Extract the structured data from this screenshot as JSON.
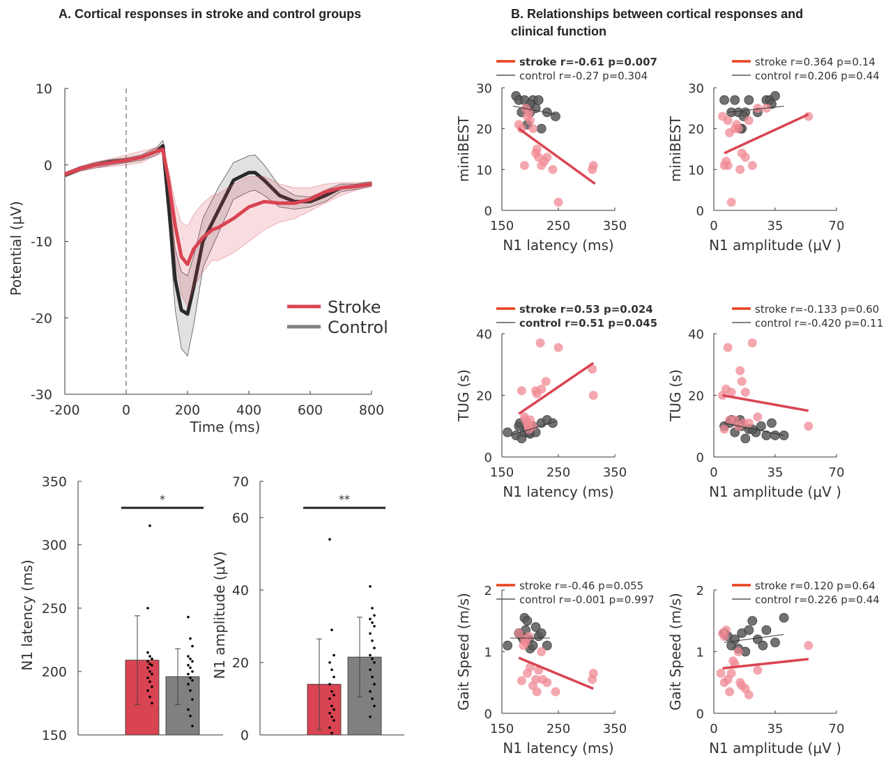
{
  "titles": {
    "panel_a": "A. Cortical responses in stroke and control groups",
    "panel_b_line1": "B. Relationships between cortical responses and",
    "panel_b_line2": "clinical function"
  },
  "colors": {
    "stroke": "#d94452",
    "control": "#808080",
    "stroke_fit": "#d94452",
    "stroke_dot": "#f08a94",
    "control_dot": "#595959"
  },
  "chart_data": [
    {
      "id": "erp",
      "type": "line",
      "xlabel": "Time (ms)",
      "ylabel": "Potential (μV)",
      "xlim": [
        -200,
        800
      ],
      "ylim": [
        -30,
        10
      ],
      "xticks": [
        -200,
        0,
        200,
        400,
        600,
        800
      ],
      "yticks": [
        10,
        0,
        -10,
        -20,
        -30
      ],
      "legend": [
        "Stroke",
        "Control"
      ],
      "series": [
        {
          "name": "Stroke",
          "x": [
            -200,
            -150,
            -100,
            -50,
            0,
            50,
            100,
            120,
            140,
            160,
            180,
            200,
            220,
            250,
            280,
            300,
            350,
            400,
            450,
            500,
            550,
            600,
            650,
            700,
            750,
            800
          ],
          "y": [
            -1.2,
            -0.5,
            0,
            0.3,
            0.6,
            1.0,
            1.8,
            2.0,
            -2.5,
            -8,
            -12,
            -13,
            -11,
            -9.5,
            -8.5,
            -8.2,
            -7,
            -5.5,
            -4.8,
            -5.0,
            -5.0,
            -4.5,
            -3.5,
            -3.0,
            -2.8,
            -2.5
          ],
          "upper": [
            -1,
            -0.2,
            0.4,
            0.8,
            1.3,
            1.8,
            2.3,
            2.3,
            -1,
            -5,
            -7.5,
            -8,
            -6.5,
            -5,
            -4,
            -3.8,
            -2.5,
            -1.5,
            -1.5,
            -2.5,
            -3,
            -3,
            -2.5,
            -2.3,
            -2.3,
            -2.2
          ],
          "lower": [
            -1.5,
            -0.8,
            -0.4,
            -0.2,
            0,
            0.3,
            1.3,
            1.5,
            -4,
            -12,
            -17,
            -18.5,
            -16,
            -14,
            -12.5,
            -12.5,
            -11.5,
            -10,
            -8.5,
            -7.5,
            -7,
            -6,
            -5,
            -4,
            -3.3,
            -2.8
          ]
        },
        {
          "name": "Control",
          "x": [
            -200,
            -150,
            -100,
            -50,
            0,
            50,
            100,
            120,
            140,
            160,
            180,
            200,
            220,
            250,
            300,
            350,
            400,
            420,
            450,
            500,
            550,
            600,
            650,
            700,
            750,
            800
          ],
          "y": [
            -1.3,
            -0.5,
            0,
            0.4,
            0.6,
            1.0,
            1.8,
            2.5,
            -6,
            -15,
            -19,
            -19.5,
            -16,
            -10,
            -6,
            -2,
            -1,
            -1,
            -2,
            -4,
            -4.8,
            -4.8,
            -4,
            -3,
            -2.8,
            -2.5
          ],
          "upper": [
            -1,
            -0.2,
            0.3,
            0.7,
            0.9,
            1.3,
            2.3,
            3.2,
            -4,
            -11,
            -14,
            -14.5,
            -12,
            -7,
            -3,
            0.3,
            1.2,
            1.3,
            0,
            -2.8,
            -4,
            -4.2,
            -3.3,
            -2.5,
            -2.5,
            -2.2
          ],
          "lower": [
            -1.6,
            -0.8,
            -0.4,
            0,
            0.3,
            0.6,
            1.3,
            2,
            -8,
            -19,
            -24,
            -25,
            -21,
            -13.5,
            -9,
            -4.5,
            -3.5,
            -3.3,
            -4,
            -5.5,
            -5.8,
            -5.5,
            -4.8,
            -3.5,
            -3.2,
            -2.8
          ]
        }
      ]
    },
    {
      "id": "latency_bar",
      "type": "bar",
      "ylabel": "N1 latency (ms)",
      "ylim": [
        150,
        350
      ],
      "yticks": [
        150,
        200,
        250,
        300,
        350
      ],
      "categories": [
        "Stroke",
        "Control"
      ],
      "values": [
        209,
        196
      ],
      "errors": [
        35,
        22
      ],
      "significance": "*",
      "points": [
        [
          215,
          212,
          210,
          208,
          206,
          205,
          203,
          200,
          198,
          195,
          192,
          188,
          185,
          180,
          175,
          250,
          315
        ],
        [
          243,
          226,
          220,
          212,
          210,
          208,
          205,
          203,
          200,
          198,
          195,
          193,
          190,
          185,
          178,
          170,
          165,
          157
        ]
      ]
    },
    {
      "id": "amplitude_bar",
      "type": "bar",
      "ylabel": "N1 amplitude (μV)",
      "ylim": [
        0,
        70
      ],
      "yticks": [
        0,
        20,
        40,
        60,
        70
      ],
      "categories": [
        "Stroke",
        "Control"
      ],
      "values": [
        14,
        21.5
      ],
      "errors": [
        12.5,
        11
      ],
      "significance": "**",
      "points": [
        [
          54,
          29,
          22,
          20,
          18,
          16,
          14,
          12,
          11,
          10,
          8,
          7,
          6,
          5,
          4,
          2,
          0.5
        ],
        [
          41,
          35,
          33,
          32,
          31,
          30,
          28,
          26,
          24,
          22,
          21,
          20,
          18,
          16,
          14,
          12,
          10,
          8,
          5
        ]
      ]
    },
    {
      "id": "s_lat_mb",
      "type": "scatter",
      "xlabel": "N1 latency (ms)",
      "ylabel": "miniBEST",
      "xlim": [
        150,
        350
      ],
      "ylim": [
        0,
        30
      ],
      "xticks": [
        150,
        250,
        350
      ],
      "yticks": [
        0,
        10,
        20,
        30
      ],
      "legend": [
        {
          "text": "stroke r=-0.61 p=0.007",
          "bold": true
        },
        {
          "text": "control r=-0.27 p=0.304",
          "bold": false
        }
      ],
      "stroke": {
        "x": [
          180,
          185,
          190,
          192,
          195,
          198,
          200,
          205,
          210,
          212,
          215,
          220,
          225,
          230,
          240,
          250,
          310,
          312
        ],
        "y": [
          21,
          20,
          11,
          25,
          23,
          24,
          22,
          20,
          14,
          15,
          13,
          11,
          12,
          13,
          10,
          2,
          10,
          11
        ]
      },
      "control": {
        "x": [
          175,
          180,
          185,
          190,
          195,
          200,
          205,
          210,
          215,
          220,
          230,
          245,
          200,
          195
        ],
        "y": [
          28,
          27,
          24,
          27,
          25,
          24,
          27,
          25,
          27,
          20,
          24,
          23,
          26,
          21
        ]
      },
      "stroke_fit": [
        [
          180,
          20
        ],
        [
          315,
          6.5
        ]
      ],
      "control_fit": [
        [
          170,
          25.5
        ],
        [
          245,
          23.5
        ]
      ]
    },
    {
      "id": "s_amp_mb",
      "type": "scatter",
      "xlabel": "N1 amplitude (μV )",
      "ylabel": "miniBEST",
      "xlim": [
        0,
        70
      ],
      "ylim": [
        0,
        30
      ],
      "xticks": [
        0,
        35,
        70
      ],
      "yticks": [
        0,
        10,
        20,
        30
      ],
      "legend": [
        {
          "text": "stroke r=0.364 p=0.14",
          "bold": false
        },
        {
          "text": "control r=0.206 p=0.44",
          "bold": false
        }
      ],
      "stroke": {
        "x": [
          5,
          6,
          7,
          8,
          9,
          10,
          12,
          13,
          15,
          16,
          18,
          20,
          22,
          25,
          30,
          54,
          8,
          14
        ],
        "y": [
          23,
          11,
          12,
          22,
          19,
          2,
          20,
          21,
          10,
          14,
          13,
          22,
          11,
          25,
          25,
          23,
          11,
          20
        ]
      },
      "control": {
        "x": [
          6,
          10,
          12,
          14,
          16,
          18,
          20,
          25,
          30,
          32,
          35,
          15,
          17,
          33
        ],
        "y": [
          27,
          24,
          27,
          24,
          20,
          24,
          27,
          24,
          27,
          27,
          28,
          20,
          23,
          26
        ]
      },
      "stroke_fit": [
        [
          6,
          14
        ],
        [
          54,
          23.5
        ]
      ],
      "control_fit": [
        [
          8,
          24
        ],
        [
          40,
          25.5
        ]
      ]
    },
    {
      "id": "s_lat_tug",
      "type": "scatter",
      "xlabel": "N1 latency (ms)",
      "ylabel": "TUG (s)",
      "xlim": [
        150,
        350
      ],
      "ylim": [
        0,
        40
      ],
      "xticks": [
        150,
        250,
        350
      ],
      "yticks": [
        0,
        20,
        40
      ],
      "legend": [
        {
          "text": "stroke r=0.53 p=0.024",
          "bold": true
        },
        {
          "text": "control r=0.51 p=0.045",
          "bold": true
        }
      ],
      "stroke": {
        "x": [
          185,
          190,
          192,
          195,
          198,
          200,
          205,
          210,
          212,
          218,
          220,
          228,
          250,
          310,
          312,
          196
        ],
        "y": [
          21.5,
          13,
          12,
          11,
          9,
          12,
          10,
          21.5,
          20.5,
          37,
          22,
          24.5,
          35.5,
          28.5,
          20,
          10
        ]
      },
      "control": {
        "x": [
          160,
          175,
          180,
          185,
          190,
          195,
          200,
          205,
          210,
          220,
          230,
          240,
          182,
          198
        ],
        "y": [
          8,
          7,
          10,
          6,
          8,
          9,
          7.5,
          10,
          8,
          11,
          12,
          11,
          11,
          8
        ]
      },
      "stroke_fit": [
        [
          180,
          14
        ],
        [
          312,
          30.5
        ]
      ],
      "control_fit": [
        [
          165,
          7
        ],
        [
          245,
          11.5
        ]
      ]
    },
    {
      "id": "s_amp_tug",
      "type": "scatter",
      "xlabel": "N1 amplitude (μV )",
      "ylabel": "TUG (s)",
      "xlim": [
        0,
        70
      ],
      "ylim": [
        0,
        40
      ],
      "xticks": [
        0,
        35,
        70
      ],
      "yticks": [
        0,
        20,
        40
      ],
      "legend": [
        {
          "text": "stroke r=-0.133 p=0.60",
          "bold": false
        },
        {
          "text": "control r=-0.420 p=0.11",
          "bold": false
        }
      ],
      "stroke": {
        "x": [
          5,
          6,
          7,
          8,
          10,
          12,
          14,
          15,
          16,
          18,
          20,
          22,
          25,
          54,
          9,
          17
        ],
        "y": [
          20,
          9,
          22,
          35.5,
          21,
          12,
          10,
          28,
          24.5,
          21,
          11,
          37,
          13,
          10,
          12,
          11
        ]
      },
      "control": {
        "x": [
          6,
          9,
          10,
          12,
          14,
          16,
          18,
          20,
          24,
          27,
          30,
          33,
          35,
          40,
          15,
          22
        ],
        "y": [
          10,
          11,
          12,
          8,
          11,
          10,
          6,
          9,
          8,
          10,
          7,
          11,
          7,
          7,
          12,
          9
        ]
      },
      "stroke_fit": [
        [
          5,
          20
        ],
        [
          54,
          15
        ]
      ],
      "control_fit": [
        [
          6,
          11
        ],
        [
          40,
          7
        ]
      ]
    },
    {
      "id": "s_lat_gait",
      "type": "scatter",
      "xlabel": "N1 latency (ms)",
      "ylabel": "Gait Speed (m/s)",
      "xlim": [
        150,
        350
      ],
      "ylim": [
        0,
        2
      ],
      "xticks": [
        150,
        250,
        350
      ],
      "yticks": [
        0,
        1,
        2
      ],
      "legend": [
        {
          "text": "stroke r=-0.46 p=0.055",
          "bold": false
        },
        {
          "text": "control r=-0.001 p=0.997",
          "bold": false
        }
      ],
      "stroke": {
        "x": [
          180,
          185,
          188,
          190,
          195,
          198,
          200,
          205,
          210,
          212,
          215,
          220,
          222,
          230,
          245,
          310,
          312,
          192
        ],
        "y": [
          1.3,
          0.53,
          1.1,
          1.2,
          0.65,
          1.25,
          0.75,
          0.45,
          0.55,
          0.35,
          0.7,
          1.0,
          0.55,
          0.5,
          0.35,
          0.55,
          0.65,
          1.15
        ]
      },
      "control": {
        "x": [
          160,
          180,
          185,
          190,
          195,
          198,
          200,
          205,
          210,
          215,
          220,
          230,
          192,
          188
        ],
        "y": [
          1.1,
          1.3,
          1.25,
          1.55,
          1.5,
          1.2,
          1.05,
          1.1,
          1.4,
          1.25,
          1.3,
          1.1,
          1.35,
          1.2
        ]
      },
      "stroke_fit": [
        [
          180,
          0.9
        ],
        [
          312,
          0.4
        ]
      ],
      "control_fit": [
        [
          165,
          1.22
        ],
        [
          235,
          1.22
        ]
      ]
    },
    {
      "id": "s_amp_gait",
      "type": "scatter",
      "xlabel": "N1 amplitude (μV )",
      "ylabel": "Gait Speed (m/s)",
      "xlim": [
        0,
        70
      ],
      "ylim": [
        0,
        2
      ],
      "xticks": [
        0,
        35,
        70
      ],
      "yticks": [
        0,
        1,
        2
      ],
      "legend": [
        {
          "text": "stroke r=0.120 p=0.64",
          "bold": false
        },
        {
          "text": "control r=0.226 p=0.44",
          "bold": false
        }
      ],
      "stroke": {
        "x": [
          4,
          5,
          6,
          7,
          8,
          9,
          10,
          12,
          14,
          15,
          16,
          18,
          20,
          25,
          54,
          6,
          11
        ],
        "y": [
          0.65,
          1.3,
          0.5,
          1.35,
          0.55,
          0.35,
          0.65,
          0.8,
          1.0,
          0.5,
          0.45,
          0.4,
          0.3,
          0.7,
          1.1,
          1.25,
          0.85
        ]
      },
      "control": {
        "x": [
          6,
          8,
          10,
          12,
          14,
          16,
          18,
          20,
          22,
          25,
          28,
          30,
          40,
          35
        ],
        "y": [
          1.3,
          1.25,
          1.1,
          1.2,
          1.05,
          1.3,
          1.0,
          1.35,
          1.5,
          1.2,
          1.1,
          1.35,
          1.55,
          1.15
        ]
      },
      "stroke_fit": [
        [
          5,
          0.73
        ],
        [
          54,
          0.88
        ]
      ],
      "control_fit": [
        [
          6,
          1.15
        ],
        [
          40,
          1.28
        ]
      ]
    }
  ]
}
